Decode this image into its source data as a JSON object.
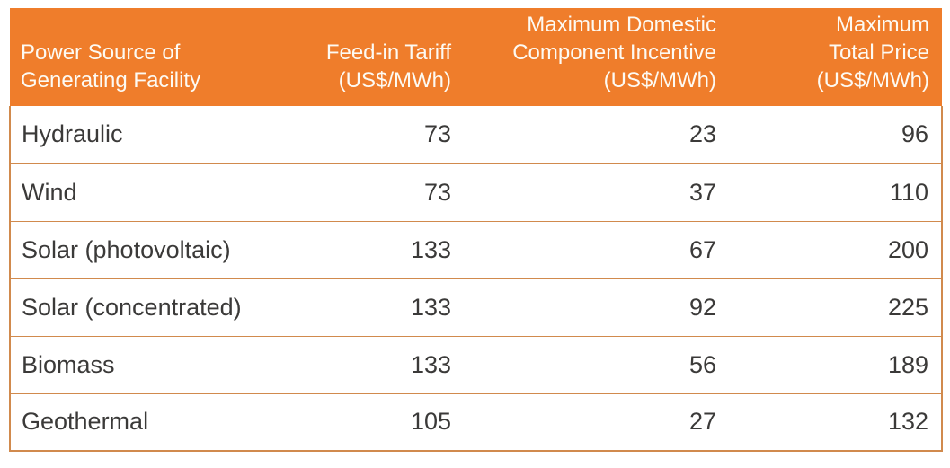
{
  "chart_data": {
    "type": "table",
    "columns": [
      "Power Source of\nGenerating Facility",
      "Feed-in Tariff\n(US$/MWh)",
      "Maximum Domestic\nComponent Incentive\n(US$/MWh)",
      "Maximum\nTotal Price\n(US$/MWh)"
    ],
    "rows": [
      {
        "source": "Hydraulic",
        "values": [
          73,
          23,
          96
        ]
      },
      {
        "source": "Wind",
        "values": [
          73,
          37,
          110
        ]
      },
      {
        "source": "Solar (photovoltaic)",
        "values": [
          133,
          67,
          200
        ]
      },
      {
        "source": "Solar (concentrated)",
        "values": [
          133,
          92,
          225
        ]
      },
      {
        "source": "Biomass",
        "values": [
          133,
          56,
          189
        ]
      },
      {
        "source": "Geothermal",
        "values": [
          105,
          27,
          132
        ]
      }
    ]
  },
  "colors": {
    "header_background": "#EF7D2B",
    "header_text": "#FDFAF3",
    "body_text": "#3B3A39",
    "grid_line": "#D18A4D",
    "page_background": "#FFFFFF"
  }
}
